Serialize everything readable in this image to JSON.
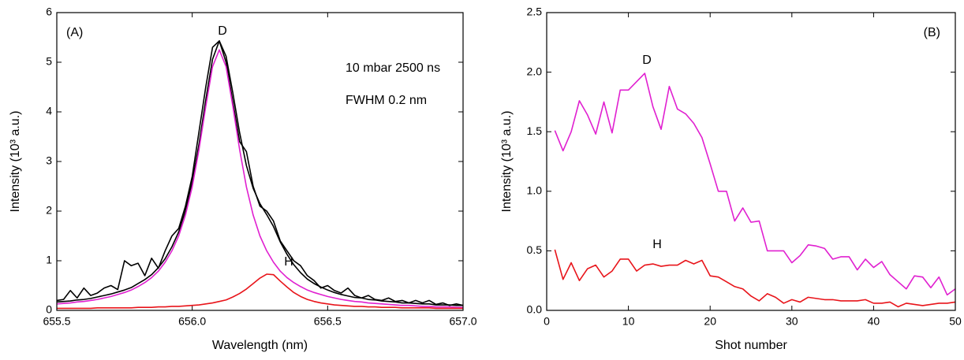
{
  "chart_data": [
    {
      "type": "line",
      "title": "(A)",
      "x_label": "Wavelength (nm)",
      "y_label": "Intensity (10³ a.u.)",
      "annotations": [
        "D",
        "H",
        "10 mbar 2500 ns",
        "FWHM 0.2 nm"
      ],
      "x": [
        655.5,
        655.525,
        655.55,
        655.575,
        655.6,
        655.625,
        655.65,
        655.675,
        655.7,
        655.725,
        655.75,
        655.775,
        655.8,
        655.825,
        655.85,
        655.875,
        655.9,
        655.925,
        655.95,
        655.975,
        656,
        656.025,
        656.05,
        656.075,
        656.1,
        656.125,
        656.15,
        656.175,
        656.2,
        656.225,
        656.25,
        656.275,
        656.3,
        656.325,
        656.35,
        656.375,
        656.4,
        656.425,
        656.45,
        656.475,
        656.5,
        656.525,
        656.55,
        656.575,
        656.6,
        656.625,
        656.65,
        656.675,
        656.7,
        656.725,
        656.75,
        656.775,
        656.8,
        656.825,
        656.85,
        656.875,
        656.9,
        656.925,
        656.95,
        656.975,
        657
      ],
      "series": [
        {
          "color": "#000000",
          "values": [
            0.2,
            0.22,
            0.4,
            0.25,
            0.45,
            0.3,
            0.35,
            0.45,
            0.5,
            0.42,
            1.0,
            0.9,
            0.95,
            0.7,
            1.05,
            0.85,
            1.2,
            1.5,
            1.65,
            2.1,
            2.7,
            3.6,
            4.5,
            5.3,
            5.43,
            5.0,
            4.2,
            3.4,
            3.2,
            2.5,
            2.1,
            2.0,
            1.8,
            1.4,
            1.2,
            1.0,
            0.9,
            0.7,
            0.6,
            0.45,
            0.5,
            0.4,
            0.35,
            0.45,
            0.3,
            0.25,
            0.3,
            0.22,
            0.2,
            0.25,
            0.18,
            0.2,
            0.15,
            0.2,
            0.15,
            0.2,
            0.12,
            0.15,
            0.1,
            0.13,
            0.1
          ]
        },
        {
          "color": "#000000",
          "values": [
            0.17,
            0.18,
            0.19,
            0.21,
            0.22,
            0.24,
            0.27,
            0.3,
            0.33,
            0.37,
            0.41,
            0.46,
            0.54,
            0.62,
            0.72,
            0.86,
            1.04,
            1.28,
            1.58,
            2.01,
            2.59,
            3.35,
            4.24,
            5.06,
            5.43,
            5.12,
            4.38,
            3.58,
            2.92,
            2.46,
            2.15,
            1.93,
            1.69,
            1.38,
            1.13,
            0.92,
            0.76,
            0.63,
            0.54,
            0.47,
            0.41,
            0.36,
            0.32,
            0.29,
            0.26,
            0.25,
            0.22,
            0.21,
            0.19,
            0.18,
            0.17,
            0.15,
            0.15,
            0.14,
            0.13,
            0.13,
            0.11,
            0.11,
            0.11,
            0.1,
            0.1
          ]
        },
        {
          "color": "#e020d0",
          "values": [
            0.13,
            0.14,
            0.15,
            0.17,
            0.18,
            0.2,
            0.22,
            0.25,
            0.28,
            0.32,
            0.36,
            0.41,
            0.48,
            0.56,
            0.66,
            0.79,
            0.97,
            1.2,
            1.5,
            1.92,
            2.49,
            3.24,
            4.11,
            4.91,
            5.25,
            4.91,
            4.11,
            3.24,
            2.49,
            1.92,
            1.5,
            1.2,
            0.97,
            0.79,
            0.66,
            0.56,
            0.48,
            0.41,
            0.36,
            0.32,
            0.28,
            0.25,
            0.22,
            0.2,
            0.18,
            0.17,
            0.15,
            0.14,
            0.13,
            0.12,
            0.11,
            0.1,
            0.1,
            0.09,
            0.08,
            0.08,
            0.07,
            0.07,
            0.07,
            0.06,
            0.06
          ]
        },
        {
          "color": "#e8141a",
          "values": [
            0.04,
            0.04,
            0.04,
            0.04,
            0.04,
            0.04,
            0.05,
            0.05,
            0.05,
            0.05,
            0.05,
            0.05,
            0.06,
            0.06,
            0.06,
            0.07,
            0.07,
            0.08,
            0.08,
            0.09,
            0.1,
            0.11,
            0.13,
            0.15,
            0.18,
            0.21,
            0.27,
            0.34,
            0.43,
            0.54,
            0.65,
            0.73,
            0.72,
            0.59,
            0.47,
            0.36,
            0.28,
            0.22,
            0.18,
            0.15,
            0.13,
            0.11,
            0.1,
            0.09,
            0.08,
            0.08,
            0.07,
            0.07,
            0.06,
            0.06,
            0.06,
            0.05,
            0.05,
            0.05,
            0.05,
            0.05,
            0.04,
            0.04,
            0.04,
            0.04,
            0.04
          ]
        }
      ],
      "xlim": [
        655.5,
        657.0
      ],
      "xticks": [
        655.5,
        {
          "value": 656.0,
          "label": "656.0"
        },
        656.5,
        {
          "value": 657.0,
          "label": "657.0"
        }
      ],
      "ylim": [
        0,
        6
      ],
      "yticks": [
        0,
        1,
        2,
        3,
        4,
        5,
        6
      ]
    },
    {
      "type": "line",
      "title": "(B)",
      "x_label": "Shot number",
      "y_label": "Intensity (10³ a.u.)",
      "annotations": [
        "D",
        "H"
      ],
      "x": [
        1,
        2,
        3,
        4,
        5,
        6,
        7,
        8,
        9,
        10,
        11,
        12,
        13,
        14,
        15,
        16,
        17,
        18,
        19,
        20,
        21,
        22,
        23,
        24,
        25,
        26,
        27,
        28,
        29,
        30,
        31,
        32,
        33,
        34,
        35,
        36,
        37,
        38,
        39,
        40,
        41,
        42,
        43,
        44,
        45,
        46,
        47,
        48,
        49,
        50
      ],
      "series": [
        {
          "color": "#e020d0",
          "values": [
            1.51,
            1.34,
            1.5,
            1.76,
            1.64,
            1.48,
            1.75,
            1.49,
            1.85,
            1.85,
            1.92,
            1.99,
            1.71,
            1.52,
            1.88,
            1.69,
            1.65,
            1.57,
            1.45,
            1.23,
            1.0,
            1.0,
            0.75,
            0.86,
            0.74,
            0.75,
            0.5,
            0.5,
            0.5,
            0.4,
            0.46,
            0.55,
            0.54,
            0.52,
            0.43,
            0.45,
            0.45,
            0.34,
            0.43,
            0.36,
            0.41,
            0.3,
            0.24,
            0.18,
            0.29,
            0.28,
            0.19,
            0.28,
            0.13,
            0.18
          ]
        },
        {
          "color": "#e8141a",
          "values": [
            0.51,
            0.26,
            0.4,
            0.25,
            0.35,
            0.38,
            0.28,
            0.33,
            0.43,
            0.43,
            0.33,
            0.38,
            0.39,
            0.37,
            0.38,
            0.38,
            0.42,
            0.39,
            0.42,
            0.29,
            0.28,
            0.24,
            0.2,
            0.18,
            0.12,
            0.08,
            0.14,
            0.11,
            0.06,
            0.09,
            0.07,
            0.11,
            0.1,
            0.09,
            0.09,
            0.08,
            0.08,
            0.08,
            0.09,
            0.06,
            0.06,
            0.07,
            0.03,
            0.06,
            0.05,
            0.04,
            0.05,
            0.06,
            0.06,
            0.07
          ]
        }
      ],
      "xlim": [
        0,
        50
      ],
      "xticks": [
        0,
        10,
        20,
        30,
        40,
        50
      ],
      "ylim": [
        0,
        2.5
      ],
      "yticks": [
        {
          "value": 0,
          "label": "0.0"
        },
        0.5,
        {
          "value": 1,
          "label": "1.0"
        },
        1.5,
        {
          "value": 2,
          "label": "2.0"
        },
        2.5
      ]
    }
  ]
}
